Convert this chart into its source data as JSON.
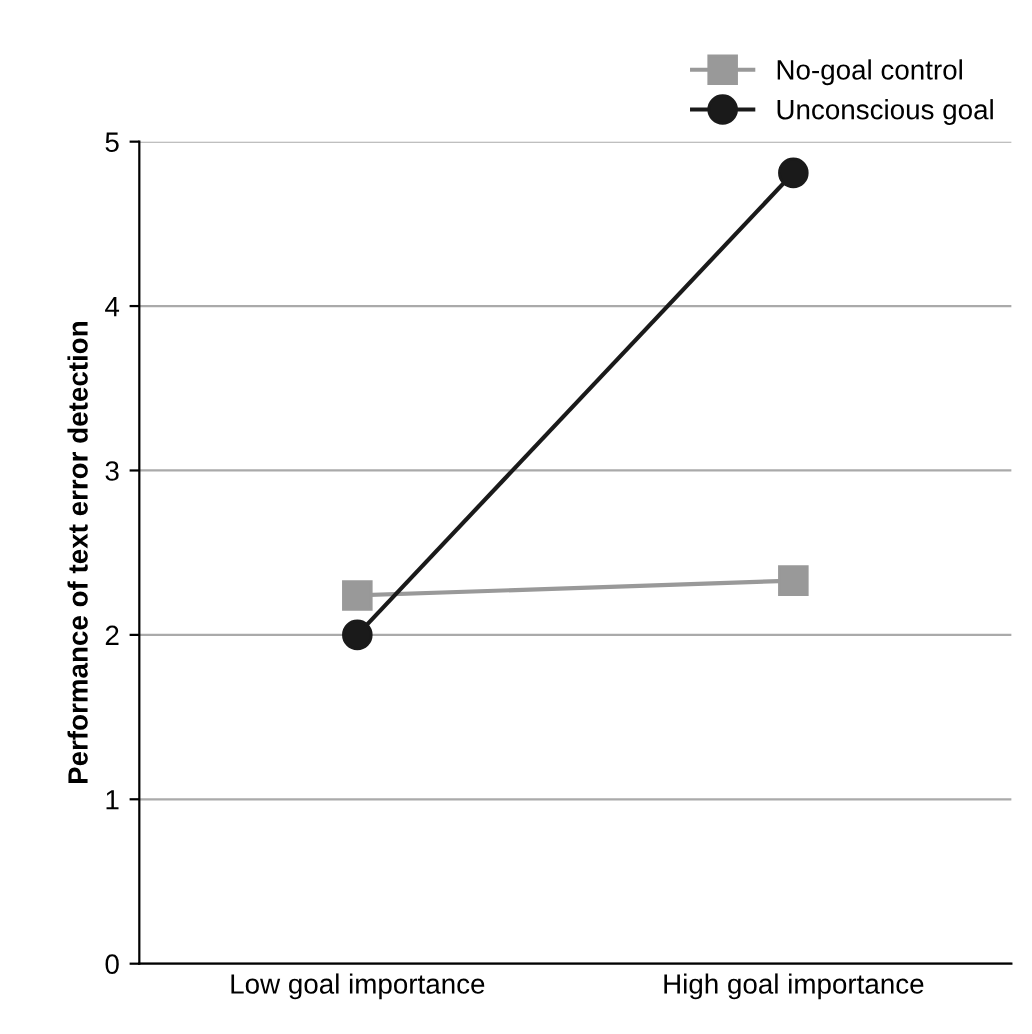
{
  "chart_data": {
    "type": "line",
    "ylabel": "Performance of text error detection",
    "categories": [
      "Low goal importance",
      "High goal importance"
    ],
    "series": [
      {
        "name": "No-goal control",
        "color": "#999999",
        "marker": "square",
        "values": [
          2.24,
          2.33
        ]
      },
      {
        "name": "Unconscious goal",
        "color": "#1a1a1a",
        "marker": "circle",
        "values": [
          2.0,
          4.81
        ]
      }
    ],
    "ylim": [
      0,
      5
    ],
    "yticks": [
      0,
      1,
      2,
      3,
      4,
      5
    ],
    "grid": "y",
    "legend": "top right",
    "line_style": "solid"
  }
}
